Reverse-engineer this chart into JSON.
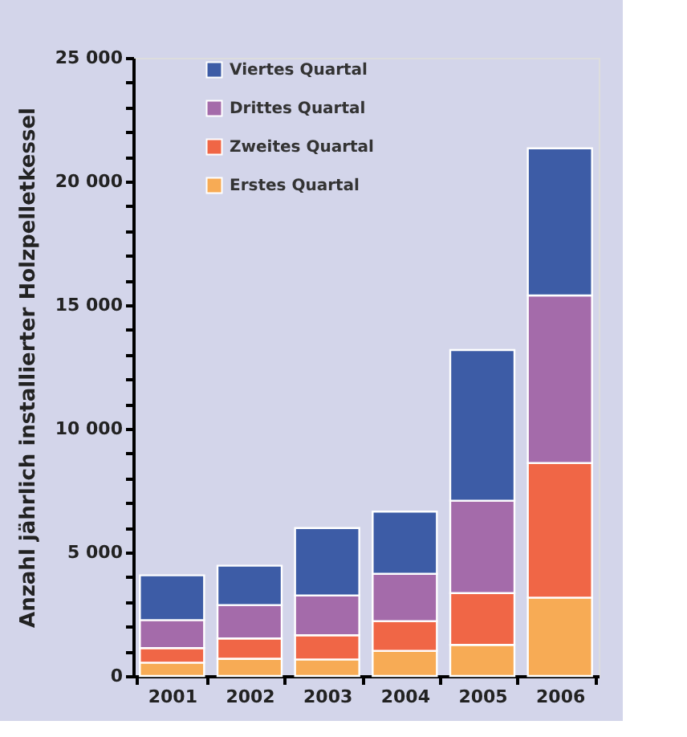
{
  "chart_data": {
    "type": "bar",
    "stacked": true,
    "ylabel": "Anzahl jährlich installierter Holzpelletkessel",
    "categories": [
      "2001",
      "2002",
      "2003",
      "2004",
      "2005",
      "2006"
    ],
    "series": [
      {
        "name": "Erstes Quartal",
        "color": "#f7ab55",
        "values": [
          540,
          700,
          670,
          1020,
          1260,
          3170
        ]
      },
      {
        "name": "Zweites Quartal",
        "color": "#f06646",
        "values": [
          590,
          820,
          980,
          1200,
          2090,
          5440
        ]
      },
      {
        "name": "Drittes Quartal",
        "color": "#a46baa",
        "values": [
          1130,
          1350,
          1610,
          1910,
          3740,
          6780
        ]
      },
      {
        "name": "Viertes Quartal",
        "color": "#3d5ca6",
        "values": [
          1810,
          1590,
          2720,
          2520,
          6090,
          5950
        ]
      }
    ],
    "ylim": [
      0,
      25000
    ],
    "yticks": [
      0,
      {
        "value": 1000,
        "label": null
      },
      {
        "value": 2000,
        "label": null
      },
      {
        "value": 3000,
        "label": null
      },
      {
        "value": 4000,
        "label": null
      },
      {
        "value": 5000,
        "label": "5 000"
      },
      {
        "value": 6000,
        "label": null
      },
      {
        "value": 7000,
        "label": null
      },
      {
        "value": 8000,
        "label": null
      },
      {
        "value": 9000,
        "label": null
      },
      {
        "value": 10000,
        "label": "10 000"
      },
      {
        "value": 11000,
        "label": null
      },
      {
        "value": 12000,
        "label": null
      },
      {
        "value": 13000,
        "label": null
      },
      {
        "value": 14000,
        "label": null
      },
      {
        "value": 15000,
        "label": "15 000"
      },
      {
        "value": 16000,
        "label": null
      },
      {
        "value": 17000,
        "label": null
      },
      {
        "value": 18000,
        "label": null
      },
      {
        "value": 19000,
        "label": null
      },
      {
        "value": 20000,
        "label": "20 000"
      },
      {
        "value": 21000,
        "label": null
      },
      {
        "value": 22000,
        "label": null
      },
      {
        "value": 23000,
        "label": null
      },
      {
        "value": 24000,
        "label": null
      },
      {
        "value": 25000,
        "label": "25 000"
      }
    ],
    "grid": false,
    "legend": "top left"
  }
}
